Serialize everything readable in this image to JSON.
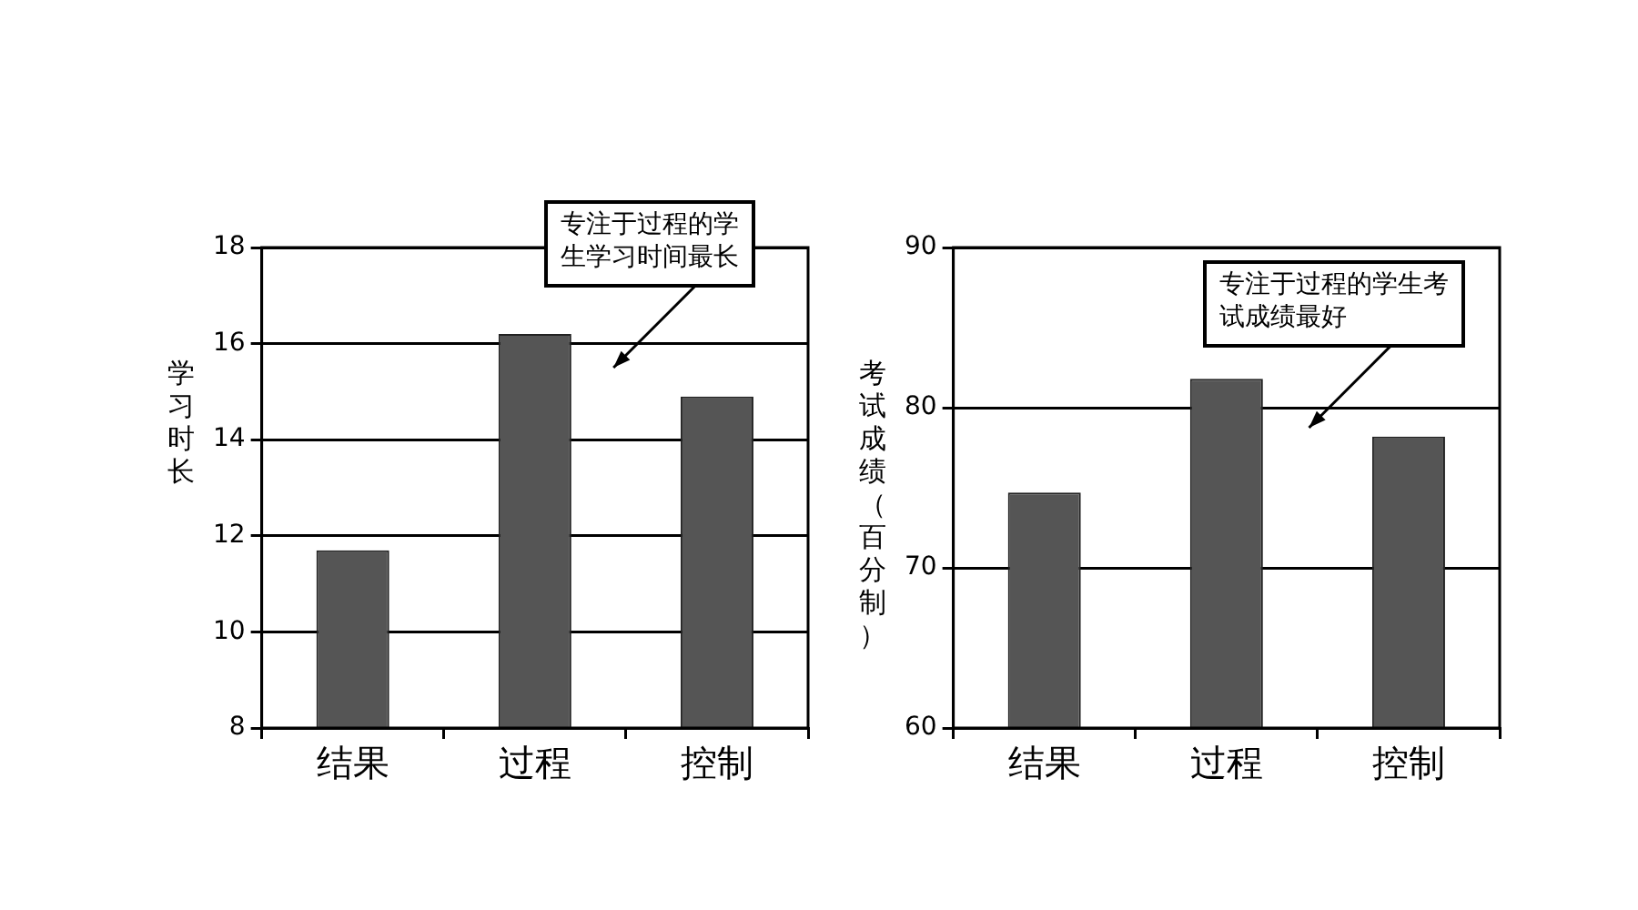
{
  "chart_data": [
    {
      "type": "bar",
      "categories": [
        "结果",
        "过程",
        "控制"
      ],
      "values": [
        11.7,
        16.2,
        14.9
      ],
      "color": "#555555",
      "ylabel": "学习时长",
      "ylim": [
        8,
        18
      ],
      "yticks": [
        8,
        10,
        12,
        14,
        16,
        18
      ],
      "grid": "y",
      "annotations": [
        "专注于过程的学生学习时间最长"
      ]
    },
    {
      "type": "bar",
      "categories": [
        "结果",
        "过程",
        "控制"
      ],
      "values": [
        74.7,
        81.8,
        78.2
      ],
      "color": "#555555",
      "ylabel": "考试成绩（百分制）",
      "ylim": [
        60,
        90
      ],
      "yticks": [
        60,
        70,
        80,
        90
      ],
      "grid": "y",
      "annotations": [
        "专注于过程的学生考试成绩最好"
      ]
    }
  ]
}
